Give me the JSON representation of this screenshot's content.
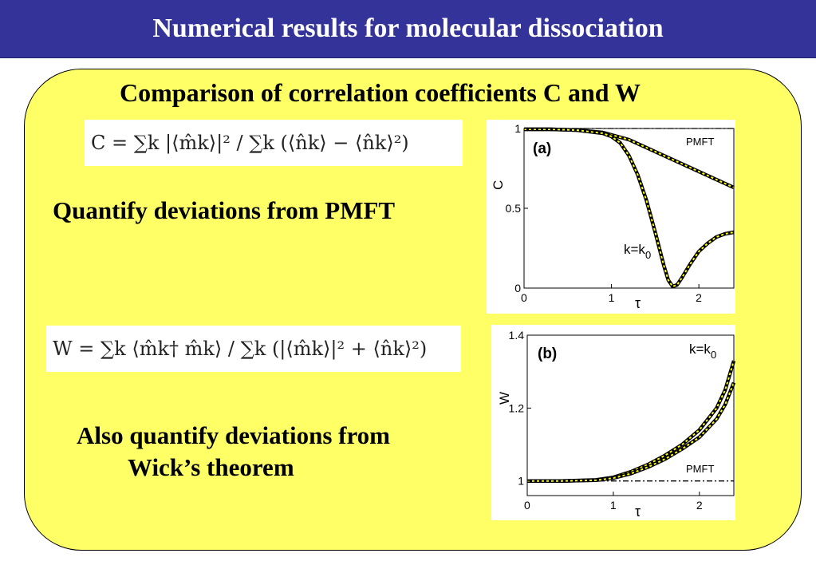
{
  "slide": {
    "title": "Numerical results for molecular dissociation",
    "heading": "Comparison of correlation coefficients C and W",
    "point1": "Quantify deviations from PMFT",
    "point2_line1": "Also quantify deviations from",
    "point2_line2": "Wick’s theorem"
  },
  "formulas": {
    "C": "C = ∑k |⟨m̂k⟩|² / ∑k (⟨n̂k⟩ − ⟨n̂k⟩²)",
    "W": "W = ∑k ⟨m̂k† m̂k⟩ / ∑k (|⟨m̂k⟩|² + ⟨n̂k⟩²)"
  },
  "colors": {
    "title_bar": "#333399",
    "panel": "#ffff66",
    "curve_outline": "#000000",
    "curve_dash": "#ffff00"
  },
  "chart_data": [
    {
      "type": "line",
      "panel_label": "(a)",
      "xlabel": "τ",
      "ylabel": "C",
      "xlim": [
        0,
        2.4
      ],
      "ylim": [
        0,
        1
      ],
      "xticks": [
        "0",
        "1",
        "2"
      ],
      "yticks": [
        "0",
        "0.5",
        "1"
      ],
      "annotations": [
        "PMFT",
        "k=k0"
      ],
      "series": [
        {
          "name": "PMFT",
          "style": "dash-dot",
          "x": [
            0,
            2.4
          ],
          "y": [
            1,
            1
          ]
        },
        {
          "name": "",
          "style": "yellow-dashed-on-black",
          "x": [
            0,
            0.3,
            0.6,
            0.9,
            1.0,
            1.2,
            1.4,
            1.6,
            1.8,
            2.0,
            2.2,
            2.4
          ],
          "y": [
            0.995,
            0.995,
            0.99,
            0.975,
            0.96,
            0.93,
            0.88,
            0.83,
            0.78,
            0.73,
            0.68,
            0.63
          ]
        },
        {
          "name": "k=k0",
          "style": "yellow-dashed-on-black",
          "x": [
            0,
            0.3,
            0.6,
            0.9,
            1.0,
            1.1,
            1.2,
            1.3,
            1.4,
            1.5,
            1.6,
            1.65,
            1.7,
            1.75,
            1.8,
            1.9,
            2.0,
            2.1,
            2.2,
            2.3,
            2.4
          ],
          "y": [
            0.995,
            0.995,
            0.99,
            0.97,
            0.95,
            0.91,
            0.83,
            0.71,
            0.55,
            0.35,
            0.14,
            0.05,
            0.01,
            0.02,
            0.06,
            0.15,
            0.23,
            0.28,
            0.32,
            0.34,
            0.35
          ]
        }
      ]
    },
    {
      "type": "line",
      "panel_label": "(b)",
      "xlabel": "τ",
      "ylabel": "W",
      "xlim": [
        0,
        2.4
      ],
      "ylim": [
        0.96,
        1.4
      ],
      "xticks": [
        "0",
        "1",
        "2"
      ],
      "yticks": [
        "1",
        "1.2",
        "1.4"
      ],
      "annotations": [
        "k=k0",
        "PMFT"
      ],
      "series": [
        {
          "name": "PMFT",
          "style": "dash-dot",
          "x": [
            0,
            2.4
          ],
          "y": [
            1,
            1
          ]
        },
        {
          "name": "k=k0",
          "style": "yellow-dashed-on-black",
          "x": [
            0,
            0.4,
            0.8,
            1.0,
            1.2,
            1.4,
            1.6,
            1.8,
            2.0,
            2.2,
            2.3,
            2.4
          ],
          "y": [
            1,
            1,
            1.003,
            1.01,
            1.025,
            1.045,
            1.07,
            1.1,
            1.14,
            1.2,
            1.25,
            1.33
          ]
        },
        {
          "name": "",
          "style": "yellow-dashed-on-black",
          "x": [
            0,
            0.4,
            0.8,
            1.0,
            1.2,
            1.4,
            1.6,
            1.8,
            2.0,
            2.2,
            2.3,
            2.4
          ],
          "y": [
            1,
            1,
            1.002,
            1.008,
            1.02,
            1.038,
            1.06,
            1.088,
            1.12,
            1.17,
            1.21,
            1.27
          ]
        }
      ]
    }
  ]
}
